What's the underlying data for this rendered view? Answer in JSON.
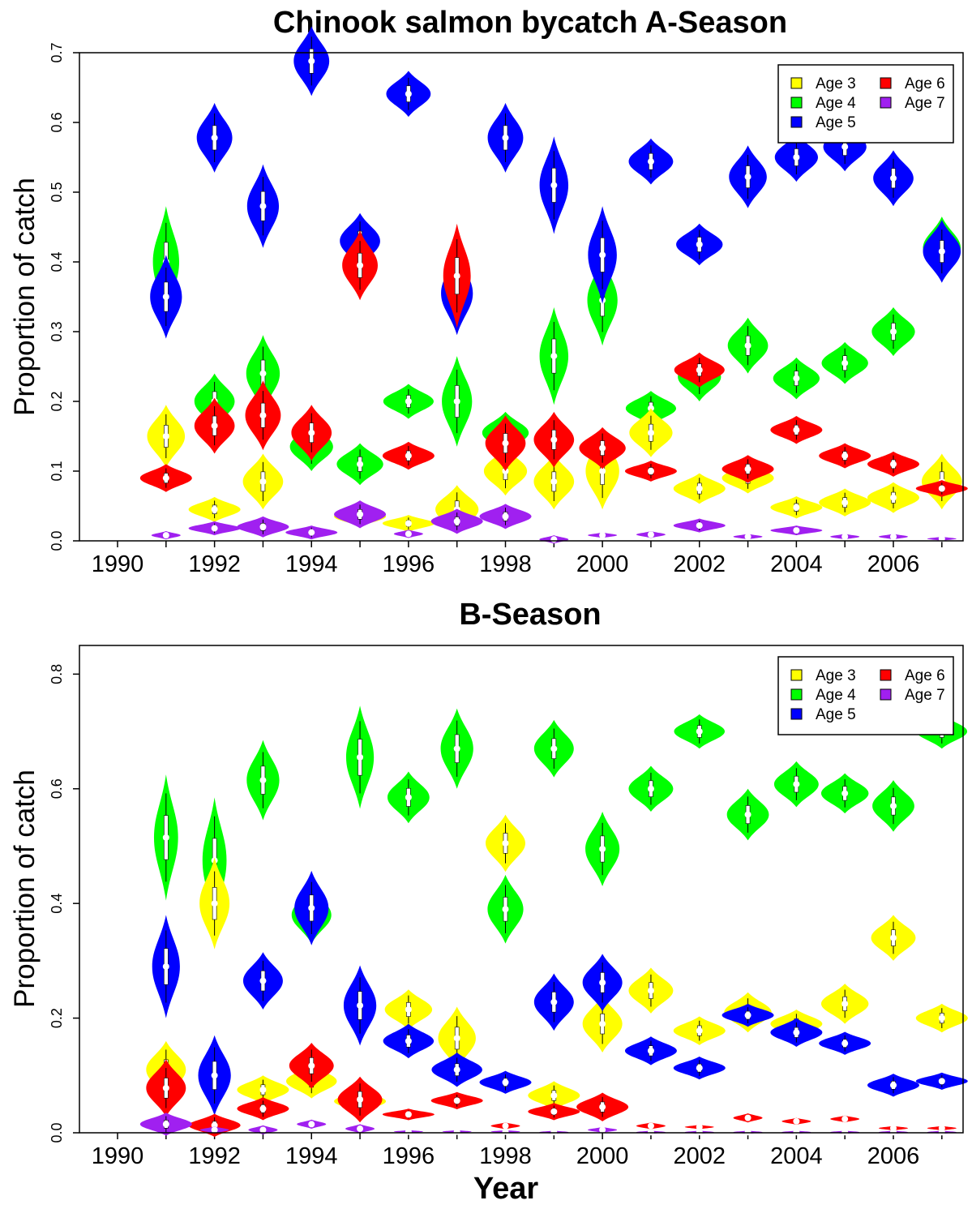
{
  "colors": {
    "Age 3": "#ffff00",
    "Age 4": "#00ff00",
    "Age 5": "#0000ff",
    "Age 6": "#ff0000",
    "Age 7": "#a020f0"
  },
  "chart_data": [
    {
      "type": "violin",
      "title": "Chinook salmon bycatch A-Season",
      "xlabel": "",
      "ylabel": "Proportion of catch",
      "xlim": [
        1990,
        2007.5
      ],
      "ylim": [
        0,
        0.7
      ],
      "x_ticks": [
        "1990",
        "1992",
        "1994",
        "1996",
        "1998",
        "2000",
        "2002",
        "2004",
        "2006"
      ],
      "y_ticks": [
        "0.0",
        "0.1",
        "0.2",
        "0.3",
        "0.4",
        "0.5",
        "0.6",
        "0.7"
      ],
      "legend": {
        "position": "top-right",
        "entries": [
          "Age 3",
          "Age 4",
          "Age 5",
          "Age 6",
          "Age 7"
        ]
      },
      "x": [
        1991,
        1992,
        1993,
        1994,
        1995,
        1996,
        1997,
        1998,
        1999,
        2000,
        2001,
        2002,
        2003,
        2004,
        2005,
        2006,
        2007
      ],
      "series": [
        {
          "name": "Age 3",
          "values": [
            0.15,
            0.045,
            0.085,
            0.012,
            0.035,
            0.025,
            0.045,
            0.1,
            0.085,
            0.1,
            0.155,
            0.075,
            0.09,
            0.048,
            0.055,
            0.062,
            0.085
          ],
          "spread": [
            0.045,
            0.018,
            0.04,
            0.006,
            0.015,
            0.012,
            0.035,
            0.035,
            0.04,
            0.055,
            0.035,
            0.022,
            0.022,
            0.016,
            0.02,
            0.022,
            0.04
          ]
        },
        {
          "name": "Age 4",
          "values": [
            0.4,
            0.2,
            0.24,
            0.135,
            0.11,
            0.2,
            0.2,
            0.155,
            0.265,
            0.345,
            0.19,
            0.235,
            0.28,
            0.233,
            0.255,
            0.3,
            0.42
          ],
          "spread": [
            0.08,
            0.04,
            0.055,
            0.035,
            0.03,
            0.025,
            0.065,
            0.03,
            0.07,
            0.065,
            0.025,
            0.035,
            0.04,
            0.03,
            0.03,
            0.035,
            0.045
          ]
        },
        {
          "name": "Age 5",
          "values": [
            0.35,
            0.578,
            0.48,
            0.688,
            0.43,
            0.641,
            0.355,
            0.578,
            0.51,
            0.41,
            0.544,
            0.425,
            0.522,
            0.55,
            0.565,
            0.52,
            0.415
          ],
          "spread": [
            0.06,
            0.05,
            0.06,
            0.05,
            0.04,
            0.033,
            0.06,
            0.05,
            0.07,
            0.07,
            0.033,
            0.03,
            0.045,
            0.035,
            0.035,
            0.04,
            0.045
          ]
        },
        {
          "name": "Age 6",
          "values": [
            0.09,
            0.165,
            0.18,
            0.155,
            0.395,
            0.122,
            0.38,
            0.14,
            0.145,
            0.133,
            0.1,
            0.245,
            0.103,
            0.159,
            0.122,
            0.11,
            0.075
          ],
          "spread": [
            0.02,
            0.04,
            0.05,
            0.04,
            0.05,
            0.02,
            0.075,
            0.04,
            0.04,
            0.03,
            0.015,
            0.025,
            0.02,
            0.02,
            0.018,
            0.018,
            0.012
          ]
        },
        {
          "name": "Age 7",
          "values": [
            0.008,
            0.018,
            0.02,
            0.012,
            0.038,
            0.01,
            0.028,
            0.035,
            0.002,
            0.008,
            0.009,
            0.022,
            0.006,
            0.015,
            0.006,
            0.006,
            0.003
          ],
          "spread": [
            0.006,
            0.01,
            0.015,
            0.01,
            0.02,
            0.006,
            0.018,
            0.018,
            0.006,
            0.004,
            0.005,
            0.01,
            0.004,
            0.007,
            0.004,
            0.004,
            0.003
          ]
        }
      ]
    },
    {
      "type": "violin",
      "title": "B-Season",
      "xlabel": "Year",
      "ylabel": "Proportion of catch",
      "xlim": [
        1990,
        2007.5
      ],
      "ylim": [
        0,
        0.85
      ],
      "x_ticks": [
        "1990",
        "1992",
        "1994",
        "1996",
        "1998",
        "2000",
        "2002",
        "2004",
        "2006"
      ],
      "y_ticks": [
        "0.0",
        "0.2",
        "0.4",
        "0.6",
        "0.8"
      ],
      "legend": {
        "position": "top-right",
        "entries": [
          "Age 3",
          "Age 4",
          "Age 5",
          "Age 6",
          "Age 7"
        ]
      },
      "x": [
        1991,
        1992,
        1993,
        1994,
        1995,
        1996,
        1997,
        1998,
        1999,
        2000,
        2001,
        2002,
        2003,
        2004,
        2005,
        2006,
        2007
      ],
      "series": [
        {
          "name": "Age 3",
          "values": [
            0.11,
            0.4,
            0.075,
            0.09,
            0.055,
            0.215,
            0.165,
            0.505,
            0.065,
            0.19,
            0.248,
            0.178,
            0.21,
            0.19,
            0.225,
            0.34,
            0.2
          ],
          "spread": [
            0.05,
            0.08,
            0.025,
            0.03,
            0.02,
            0.035,
            0.055,
            0.05,
            0.025,
            0.05,
            0.04,
            0.025,
            0.035,
            0.025,
            0.035,
            0.04,
            0.025
          ]
        },
        {
          "name": "Age 4",
          "values": [
            0.515,
            0.475,
            0.615,
            0.38,
            0.655,
            0.585,
            0.67,
            0.39,
            0.67,
            0.495,
            0.6,
            0.7,
            0.555,
            0.608,
            0.592,
            0.57,
            0.7
          ],
          "spread": [
            0.11,
            0.11,
            0.07,
            0.05,
            0.09,
            0.045,
            0.07,
            0.06,
            0.05,
            0.065,
            0.04,
            0.03,
            0.045,
            0.04,
            0.035,
            0.045,
            0.03
          ]
        },
        {
          "name": "Age 5",
          "values": [
            0.29,
            0.1,
            0.265,
            0.392,
            0.222,
            0.16,
            0.11,
            0.088,
            0.228,
            0.262,
            0.143,
            0.113,
            0.205,
            0.175,
            0.156,
            0.083,
            0.09
          ],
          "spread": [
            0.09,
            0.07,
            0.05,
            0.065,
            0.07,
            0.03,
            0.03,
            0.02,
            0.05,
            0.05,
            0.025,
            0.02,
            0.02,
            0.025,
            0.02,
            0.02,
            0.015
          ]
        },
        {
          "name": "Age 6",
          "values": [
            0.078,
            0.013,
            0.042,
            0.117,
            0.058,
            0.032,
            0.056,
            0.012,
            0.037,
            0.045,
            0.012,
            0.01,
            0.026,
            0.02,
            0.024,
            0.008,
            0.008
          ],
          "spread": [
            0.05,
            0.02,
            0.02,
            0.04,
            0.04,
            0.01,
            0.015,
            0.006,
            0.015,
            0.025,
            0.006,
            0.004,
            0.008,
            0.006,
            0.006,
            0.004,
            0.004
          ]
        },
        {
          "name": "Age 7",
          "values": [
            0.015,
            0.005,
            0.005,
            0.015,
            0.007,
            0.002,
            0.002,
            0.002,
            0.001,
            0.005,
            0.001,
            0.001,
            0.001,
            0.001,
            0.001,
            0.001,
            0.001
          ],
          "spread": [
            0.02,
            0.006,
            0.008,
            0.008,
            0.008,
            0.002,
            0.002,
            0.002,
            0.001,
            0.005,
            0.001,
            0.001,
            0.001,
            0.001,
            0.001,
            0.001,
            0.001
          ]
        }
      ]
    }
  ]
}
